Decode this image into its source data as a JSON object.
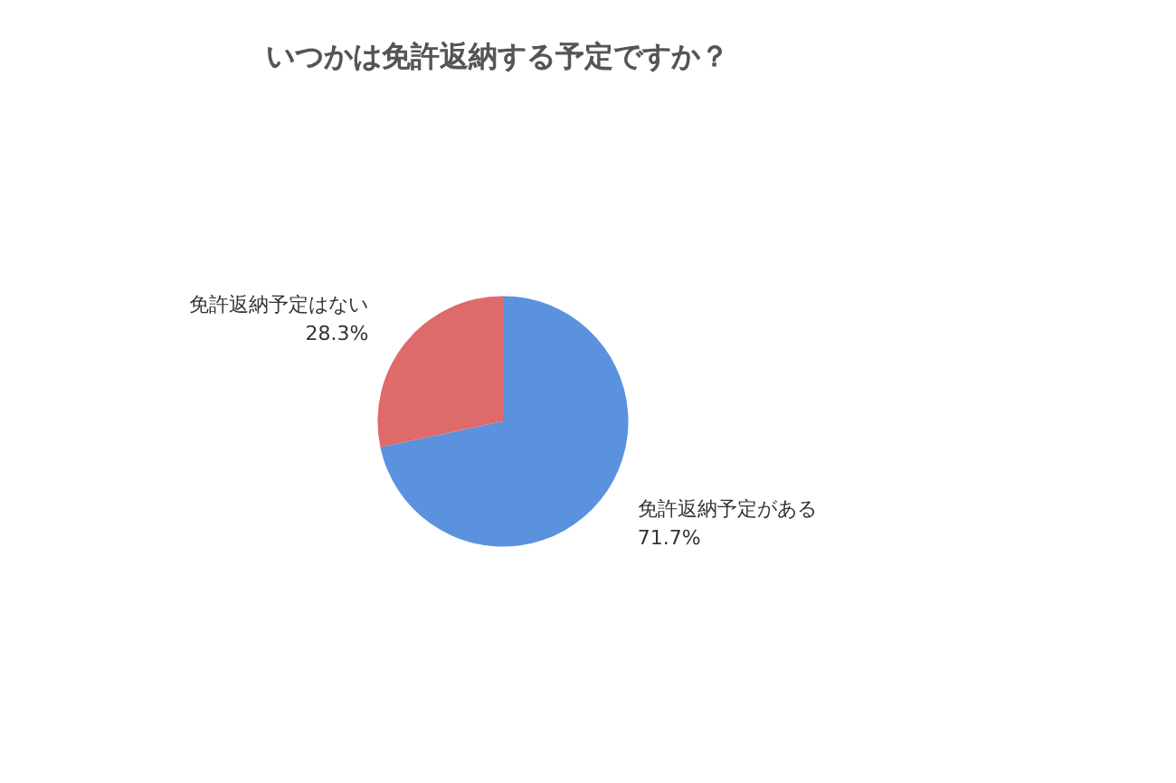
{
  "chart_data": {
    "type": "pie",
    "title": "いつかは免許返納する予定ですか？",
    "categories": [
      "免許返納予定がある",
      "免許返納予定はない"
    ],
    "values": [
      71.7,
      28.3
    ],
    "colors": [
      "#5b92de",
      "#df6a6a"
    ],
    "value_labels": [
      "71.7%",
      "28.3%"
    ],
    "legend": false
  }
}
